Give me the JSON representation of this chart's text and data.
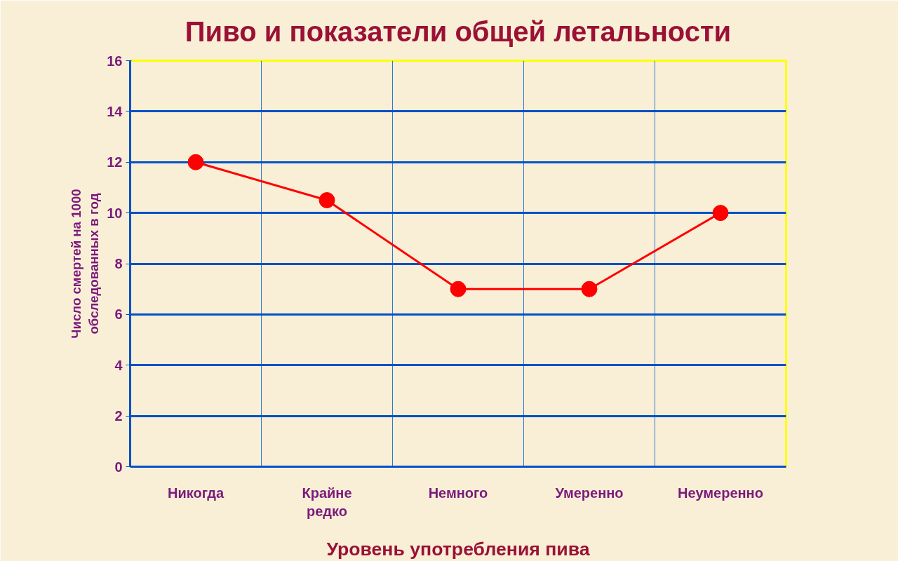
{
  "chart_data": {
    "type": "line",
    "title": "Пиво и показатели общей летальности",
    "xlabel": "Уровень употребления пива",
    "ylabel": "Число смертей на 1000 обследованных в год",
    "categories": [
      "Никогда",
      "Крайне редко",
      "Немного",
      "Умеренно",
      "Неумеренно"
    ],
    "series": [
      {
        "color": "#ff0000",
        "values": [
          12,
          10.5,
          7,
          7,
          10
        ]
      }
    ],
    "ylim": [
      0,
      16
    ],
    "yticks": [
      0,
      2,
      4,
      6,
      8,
      10,
      12,
      14,
      16
    ],
    "grid": true,
    "marker": "circle",
    "line_style": "solid"
  }
}
